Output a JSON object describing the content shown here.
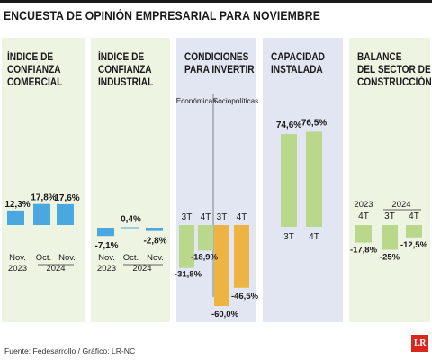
{
  "title": "ENCUESTA DE OPINIÓN EMPRESARIAL PARA NOVIEMBRE",
  "source": "Fuente: Fedesarrollo / Gráfico: LR-NC",
  "logo_text": "LR",
  "colors": {
    "blue": "#4aa7df",
    "green": "#b9d88c",
    "orange": "#edb443",
    "panel_green": "#edf4e2",
    "panel_blue": "#e2e6f2"
  },
  "panels": {
    "comercial": {
      "title_lines": [
        "ÍNDICE DE",
        "CONFIANZA",
        "COMERCIAL"
      ]
    },
    "industrial": {
      "title_lines": [
        "ÍNDICE DE",
        "CONFIANZA",
        "INDUSTRIAL"
      ]
    },
    "condiciones": {
      "title_lines": [
        "CONDICIONES",
        "PARA INVERTIR"
      ]
    },
    "capacidad": {
      "title_lines": [
        "CAPACIDAD",
        "INSTALADA"
      ]
    },
    "construccion": {
      "title_lines": [
        "BALANCE",
        "DEL SECTOR DE",
        "CONSTRUCCIÓN"
      ]
    }
  },
  "chart_data": [
    {
      "type": "bar",
      "title": "Índice de Confianza Comercial",
      "categories": [
        "Nov. 2023",
        "Oct. 2024",
        "Nov. 2024"
      ],
      "values": [
        12.3,
        17.8,
        17.6
      ],
      "value_labels": [
        "12,3%",
        "17,8%",
        "17,6%"
      ],
      "x_labels": [
        "Nov.",
        "Oct.",
        "Nov."
      ],
      "year_labels": [
        "2023",
        "2024"
      ]
    },
    {
      "type": "bar",
      "title": "Índice de Confianza Industrial",
      "categories": [
        "Nov. 2023",
        "Oct. 2024",
        "Nov. 2024"
      ],
      "values": [
        -7.1,
        0.4,
        -2.8
      ],
      "value_labels": [
        "-7,1%",
        "0,4%",
        "-2,8%"
      ],
      "x_labels": [
        "Nov.",
        "Oct.",
        "Nov."
      ],
      "year_labels": [
        "2023",
        "2024"
      ]
    },
    {
      "type": "bar",
      "title": "Condiciones para invertir",
      "groups": [
        "Económicas",
        "Sociopolíticas"
      ],
      "categories": [
        "3T",
        "4T",
        "3T",
        "4T"
      ],
      "values": [
        -31.8,
        -18.9,
        -60.0,
        -46.5
      ],
      "value_labels": [
        "-31,8%",
        "-18,9%",
        "-60,0%",
        "-46,5%"
      ]
    },
    {
      "type": "bar",
      "title": "Capacidad instalada",
      "categories": [
        "3T",
        "4T"
      ],
      "values": [
        74.6,
        76.5
      ],
      "value_labels": [
        "74,6%",
        "76,5%"
      ]
    },
    {
      "type": "bar",
      "title": "Balance del sector de construcción",
      "categories": [
        "4T 2023",
        "3T 2024",
        "4T 2024"
      ],
      "values": [
        -17.8,
        -25.0,
        -12.5
      ],
      "value_labels": [
        "-17,8%",
        "-25%",
        "-12,5%"
      ],
      "x_labels": [
        "4T",
        "3T",
        "4T"
      ],
      "year_labels": [
        "2023",
        "2024"
      ]
    }
  ]
}
